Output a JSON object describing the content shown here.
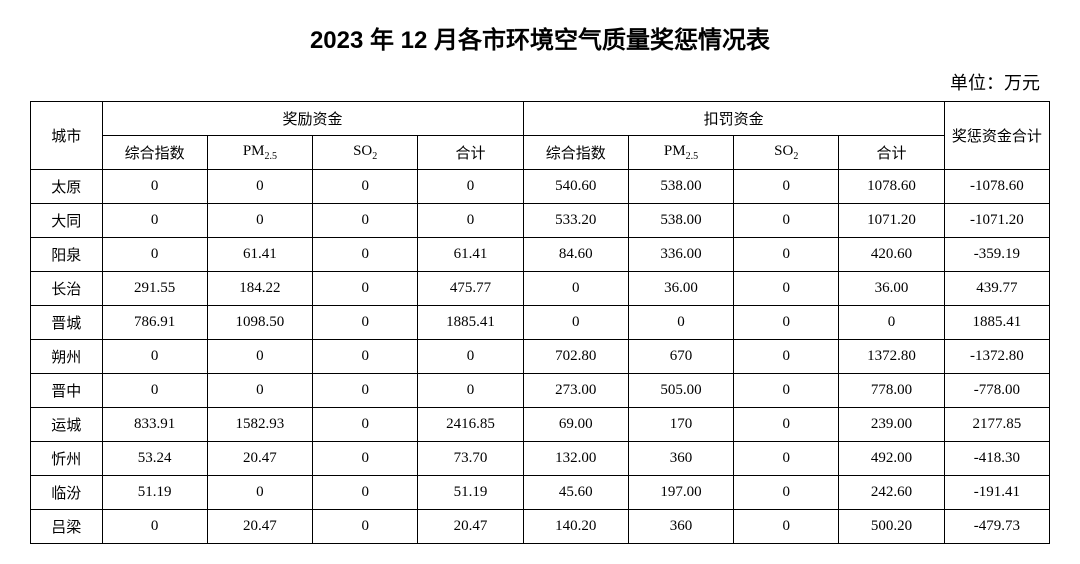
{
  "title": "2023 年 12 月各市环境空气质量奖惩情况表",
  "unit": "单位：万元",
  "headers": {
    "city": "城市",
    "reward_group": "奖励资金",
    "penalty_group": "扣罚资金",
    "net_total": "奖惩资金合计",
    "composite": "综合指数",
    "pm25": "PM",
    "pm25_sub": "2.5",
    "so2": "SO",
    "so2_sub": "2",
    "subtotal": "合计"
  },
  "rows": [
    {
      "city": "太原",
      "r_comp": "0",
      "r_pm": "0",
      "r_so2": "0",
      "r_sum": "0",
      "p_comp": "540.60",
      "p_pm": "538.00",
      "p_so2": "0",
      "p_sum": "1078.60",
      "net": "-1078.60"
    },
    {
      "city": "大同",
      "r_comp": "0",
      "r_pm": "0",
      "r_so2": "0",
      "r_sum": "0",
      "p_comp": "533.20",
      "p_pm": "538.00",
      "p_so2": "0",
      "p_sum": "1071.20",
      "net": "-1071.20"
    },
    {
      "city": "阳泉",
      "r_comp": "0",
      "r_pm": "61.41",
      "r_so2": "0",
      "r_sum": "61.41",
      "p_comp": "84.60",
      "p_pm": "336.00",
      "p_so2": "0",
      "p_sum": "420.60",
      "net": "-359.19"
    },
    {
      "city": "长治",
      "r_comp": "291.55",
      "r_pm": "184.22",
      "r_so2": "0",
      "r_sum": "475.77",
      "p_comp": "0",
      "p_pm": "36.00",
      "p_so2": "0",
      "p_sum": "36.00",
      "net": "439.77"
    },
    {
      "city": "晋城",
      "r_comp": "786.91",
      "r_pm": "1098.50",
      "r_so2": "0",
      "r_sum": "1885.41",
      "p_comp": "0",
      "p_pm": "0",
      "p_so2": "0",
      "p_sum": "0",
      "net": "1885.41"
    },
    {
      "city": "朔州",
      "r_comp": "0",
      "r_pm": "0",
      "r_so2": "0",
      "r_sum": "0",
      "p_comp": "702.80",
      "p_pm": "670",
      "p_so2": "0",
      "p_sum": "1372.80",
      "net": "-1372.80"
    },
    {
      "city": "晋中",
      "r_comp": "0",
      "r_pm": "0",
      "r_so2": "0",
      "r_sum": "0",
      "p_comp": "273.00",
      "p_pm": "505.00",
      "p_so2": "0",
      "p_sum": "778.00",
      "net": "-778.00"
    },
    {
      "city": "运城",
      "r_comp": "833.91",
      "r_pm": "1582.93",
      "r_so2": "0",
      "r_sum": "2416.85",
      "p_comp": "69.00",
      "p_pm": "170",
      "p_so2": "0",
      "p_sum": "239.00",
      "net": "2177.85"
    },
    {
      "city": "忻州",
      "r_comp": "53.24",
      "r_pm": "20.47",
      "r_so2": "0",
      "r_sum": "73.70",
      "p_comp": "132.00",
      "p_pm": "360",
      "p_so2": "0",
      "p_sum": "492.00",
      "net": "-418.30"
    },
    {
      "city": "临汾",
      "r_comp": "51.19",
      "r_pm": "0",
      "r_so2": "0",
      "r_sum": "51.19",
      "p_comp": "45.60",
      "p_pm": "197.00",
      "p_so2": "0",
      "p_sum": "242.60",
      "net": "-191.41"
    },
    {
      "city": "吕梁",
      "r_comp": "0",
      "r_pm": "20.47",
      "r_so2": "0",
      "r_sum": "20.47",
      "p_comp": "140.20",
      "p_pm": "360",
      "p_so2": "0",
      "p_sum": "500.20",
      "net": "-479.73"
    }
  ]
}
